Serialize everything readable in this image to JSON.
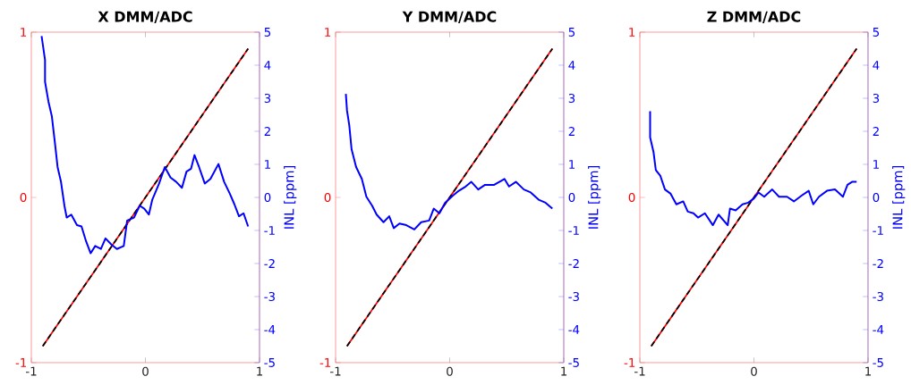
{
  "chart_data": [
    {
      "type": "line",
      "title": "X DMM/ADC",
      "y2label": "INL [ppm]",
      "xlim": [
        -1,
        1
      ],
      "xticks": [
        -1,
        0,
        1
      ],
      "ylim": [
        -1,
        1
      ],
      "yticks": [
        -1,
        0,
        1
      ],
      "y2lim": [
        -5,
        5
      ],
      "y2ticks": [
        -5,
        -4,
        -3,
        -2,
        -1,
        0,
        1,
        2,
        3,
        4,
        5
      ],
      "series": [
        {
          "color": "#ff0000",
          "x": [
            -0.9,
            0.9
          ],
          "values": [
            -0.9,
            0.9
          ]
        },
        {
          "color": "#000000",
          "line_style": "dashed",
          "x": [
            -0.9,
            0.9
          ],
          "values": [
            -0.9,
            0.9
          ]
        },
        {
          "color": "#0000ff",
          "axis": "y2",
          "x": [
            -0.91,
            -0.88,
            -0.88,
            -0.85,
            -0.82,
            -0.79,
            -0.77,
            -0.74,
            -0.71,
            -0.69,
            -0.65,
            -0.6,
            -0.56,
            -0.52,
            -0.48,
            -0.44,
            -0.39,
            -0.35,
            -0.3,
            -0.25,
            -0.19,
            -0.16,
            -0.1,
            -0.05,
            -0.01,
            0.03,
            0.06,
            0.12,
            0.17,
            0.22,
            0.27,
            0.32,
            0.36,
            0.4,
            0.43,
            0.47,
            0.52,
            0.57,
            0.64,
            0.69,
            0.74,
            0.78,
            0.82,
            0.86,
            0.9
          ],
          "values": [
            4.88,
            4.16,
            3.5,
            2.9,
            2.45,
            1.55,
            0.92,
            0.47,
            -0.25,
            -0.61,
            -0.52,
            -0.84,
            -0.88,
            -1.33,
            -1.69,
            -1.47,
            -1.56,
            -1.24,
            -1.42,
            -1.56,
            -1.47,
            -0.7,
            -0.61,
            -0.25,
            -0.34,
            -0.52,
            -0.07,
            0.42,
            0.92,
            0.6,
            0.47,
            0.29,
            0.78,
            0.87,
            1.28,
            0.92,
            0.42,
            0.56,
            1.01,
            0.47,
            0.11,
            -0.21,
            -0.57,
            -0.48,
            -0.88
          ]
        }
      ]
    },
    {
      "type": "line",
      "title": "Y DMM/ADC",
      "y2label": "INL [ppm]",
      "xlim": [
        -1,
        1
      ],
      "xticks": [
        -1,
        0,
        1
      ],
      "ylim": [
        -1,
        1
      ],
      "yticks": [
        -1,
        0,
        1
      ],
      "y2lim": [
        -5,
        5
      ],
      "y2ticks": [
        -5,
        -4,
        -3,
        -2,
        -1,
        0,
        1,
        2,
        3,
        4,
        5
      ],
      "series": [
        {
          "color": "#ff0000",
          "x": [
            -0.9,
            0.9
          ],
          "values": [
            -0.9,
            0.9
          ]
        },
        {
          "color": "#000000",
          "line_style": "dashed",
          "x": [
            -0.9,
            0.9
          ],
          "values": [
            -0.9,
            0.9
          ]
        },
        {
          "color": "#0000ff",
          "axis": "y2",
          "x": [
            -0.91,
            -0.9,
            -0.88,
            -0.86,
            -0.82,
            -0.77,
            -0.73,
            -0.68,
            -0.64,
            -0.58,
            -0.53,
            -0.49,
            -0.44,
            -0.38,
            -0.31,
            -0.25,
            -0.18,
            -0.14,
            -0.09,
            -0.04,
            0.03,
            0.08,
            0.14,
            0.19,
            0.25,
            0.31,
            0.39,
            0.48,
            0.52,
            0.58,
            0.65,
            0.71,
            0.78,
            0.84,
            0.9
          ],
          "values": [
            3.13,
            2.63,
            2.18,
            1.46,
            0.92,
            0.56,
            0.02,
            -0.25,
            -0.52,
            -0.75,
            -0.57,
            -0.93,
            -0.79,
            -0.84,
            -0.97,
            -0.75,
            -0.7,
            -0.34,
            -0.48,
            -0.16,
            0.06,
            0.2,
            0.33,
            0.47,
            0.24,
            0.38,
            0.38,
            0.56,
            0.33,
            0.47,
            0.24,
            0.15,
            -0.07,
            -0.16,
            -0.34
          ]
        }
      ]
    },
    {
      "type": "line",
      "title": "Z DMM/ADC",
      "y2label": "INL [ppm]",
      "xlim": [
        -1,
        1
      ],
      "xticks": [
        -1,
        0,
        1
      ],
      "ylim": [
        -1,
        1
      ],
      "yticks": [
        -1,
        0,
        1
      ],
      "y2lim": [
        -5,
        5
      ],
      "y2ticks": [
        -5,
        -4,
        -3,
        -2,
        -1,
        0,
        1,
        2,
        3,
        4,
        5
      ],
      "series": [
        {
          "color": "#ff0000",
          "x": [
            -0.9,
            0.9
          ],
          "values": [
            -0.9,
            0.9
          ]
        },
        {
          "color": "#000000",
          "line_style": "dashed",
          "x": [
            -0.9,
            0.9
          ],
          "values": [
            -0.9,
            0.9
          ]
        },
        {
          "color": "#0000ff",
          "axis": "y2",
          "x": [
            -0.91,
            -0.91,
            -0.88,
            -0.86,
            -0.82,
            -0.78,
            -0.73,
            -0.68,
            -0.62,
            -0.58,
            -0.53,
            -0.49,
            -0.43,
            -0.36,
            -0.31,
            -0.23,
            -0.21,
            -0.16,
            -0.1,
            -0.05,
            0.0,
            0.04,
            0.09,
            0.16,
            0.22,
            0.29,
            0.35,
            0.42,
            0.48,
            0.52,
            0.57,
            0.64,
            0.71,
            0.78,
            0.82,
            0.86,
            0.9
          ],
          "values": [
            2.61,
            1.82,
            1.37,
            0.83,
            0.65,
            0.24,
            0.11,
            -0.21,
            -0.12,
            -0.43,
            -0.48,
            -0.61,
            -0.48,
            -0.84,
            -0.52,
            -0.84,
            -0.34,
            -0.39,
            -0.21,
            -0.16,
            -0.03,
            0.15,
            0.02,
            0.24,
            0.02,
            0.02,
            -0.12,
            0.06,
            0.2,
            -0.21,
            0.02,
            0.2,
            0.24,
            0.02,
            0.38,
            0.47,
            0.47
          ]
        }
      ]
    }
  ]
}
